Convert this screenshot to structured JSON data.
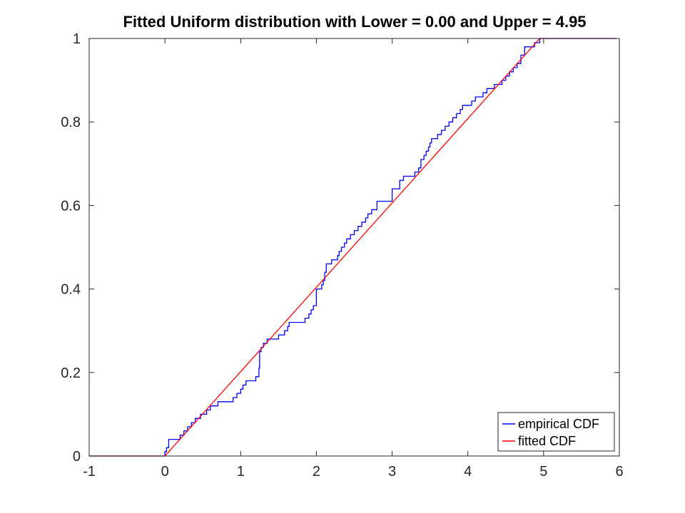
{
  "chart_data": {
    "type": "line",
    "title": "Fitted Uniform distribution with Lower = 0.00 and Upper = 4.95",
    "xlabel": "",
    "ylabel": "",
    "xlim": [
      -1,
      6
    ],
    "ylim": [
      0,
      1
    ],
    "xticks": [
      "-1",
      "0",
      "1",
      "2",
      "3",
      "4",
      "5",
      "6"
    ],
    "yticks": [
      "0",
      "0.2",
      "0.4",
      "0.6",
      "0.8",
      "1"
    ],
    "grid": false,
    "legend_position": "bottom-right",
    "series": [
      {
        "name": "empirical CDF",
        "color": "#0000ff",
        "style": "stairs",
        "x": [
          -1,
          0.0,
          0.02,
          0.05,
          0.07,
          0.2,
          0.25,
          0.3,
          0.35,
          0.4,
          0.42,
          0.47,
          0.55,
          0.6,
          0.7,
          0.9,
          0.95,
          1.0,
          1.03,
          1.07,
          1.12,
          1.2,
          1.24,
          1.25,
          1.27,
          1.3,
          1.35,
          1.42,
          1.5,
          1.58,
          1.62,
          1.64,
          1.78,
          1.85,
          1.9,
          1.93,
          1.96,
          2.0,
          2.07,
          2.09,
          2.11,
          2.13,
          2.15,
          2.2,
          2.28,
          2.3,
          2.33,
          2.37,
          2.4,
          2.45,
          2.5,
          2.55,
          2.6,
          2.65,
          2.68,
          2.73,
          2.75,
          2.8,
          2.85,
          3.0,
          3.05,
          3.1,
          3.15,
          3.2,
          3.3,
          3.35,
          3.38,
          3.42,
          3.45,
          3.48,
          3.5,
          3.52,
          3.56,
          3.6,
          3.65,
          3.7,
          3.75,
          3.8,
          3.85,
          3.9,
          3.93,
          4.0,
          4.05,
          4.1,
          4.15,
          4.2,
          4.25,
          4.3,
          4.35,
          4.45,
          4.5,
          4.55,
          4.6,
          4.65,
          4.7,
          4.75,
          4.8,
          4.88,
          4.95,
          5.95
        ],
        "y": [
          0.0,
          0.01,
          0.02,
          0.04,
          0.04,
          0.05,
          0.06,
          0.07,
          0.08,
          0.09,
          0.09,
          0.1,
          0.11,
          0.12,
          0.13,
          0.14,
          0.15,
          0.16,
          0.17,
          0.18,
          0.18,
          0.19,
          0.21,
          0.25,
          0.26,
          0.27,
          0.28,
          0.28,
          0.29,
          0.3,
          0.31,
          0.32,
          0.32,
          0.33,
          0.34,
          0.35,
          0.36,
          0.4,
          0.41,
          0.42,
          0.44,
          0.46,
          0.46,
          0.47,
          0.48,
          0.49,
          0.5,
          0.51,
          0.52,
          0.53,
          0.54,
          0.55,
          0.56,
          0.57,
          0.58,
          0.59,
          0.59,
          0.61,
          0.61,
          0.64,
          0.64,
          0.66,
          0.67,
          0.67,
          0.68,
          0.69,
          0.71,
          0.72,
          0.73,
          0.74,
          0.75,
          0.76,
          0.76,
          0.77,
          0.78,
          0.79,
          0.8,
          0.81,
          0.82,
          0.83,
          0.84,
          0.84,
          0.85,
          0.86,
          0.86,
          0.87,
          0.88,
          0.88,
          0.89,
          0.9,
          0.91,
          0.92,
          0.93,
          0.94,
          0.96,
          0.98,
          0.98,
          0.99,
          1.0,
          1.0
        ]
      },
      {
        "name": "fitted CDF",
        "color": "#ff0000",
        "style": "line",
        "x": [
          -1,
          0.0,
          4.95,
          5.95
        ],
        "y": [
          0.0,
          0.0,
          1.0,
          1.0
        ]
      }
    ]
  }
}
